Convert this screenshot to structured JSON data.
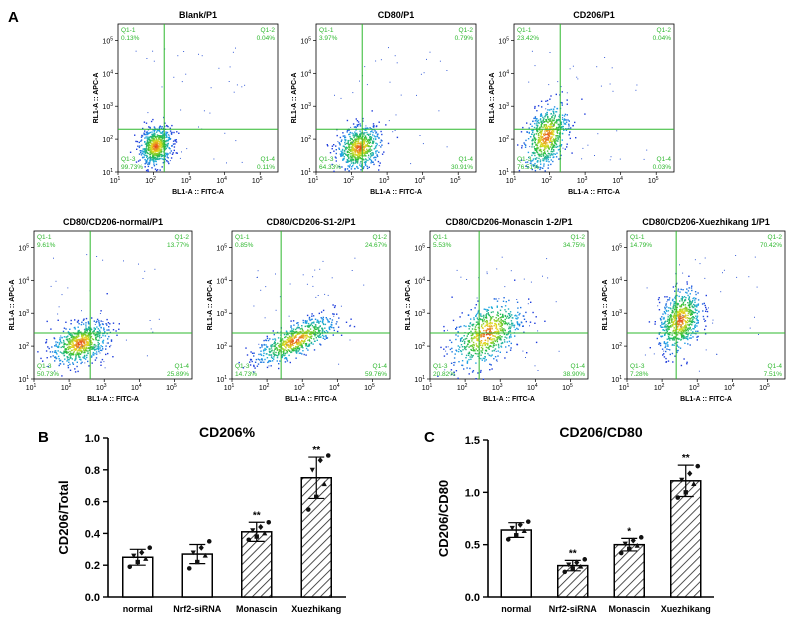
{
  "panel_letters": {
    "a": "A",
    "b": "B",
    "c": "C"
  },
  "colors": {
    "quadrant": "#2eb82e",
    "axis": "#000000",
    "point": "#333333"
  },
  "flow_axis": {
    "x_label": "BL1-A :: FITC-A",
    "y_label": "RL1-A :: APC-A",
    "ticks": [
      {
        "base": "10",
        "exp": "1"
      },
      {
        "base": "10",
        "exp": "2"
      },
      {
        "base": "10",
        "exp": "3"
      },
      {
        "base": "10",
        "exp": "4"
      },
      {
        "base": "10",
        "exp": "5"
      }
    ]
  },
  "chart_data": [
    {
      "type": "scatter",
      "title": "Blank/P1",
      "xlabel": "BL1-A :: FITC-A",
      "ylabel": "RL1-A :: APC-A",
      "x_range_log10": [
        1,
        5.5
      ],
      "y_range_log10": [
        1,
        5.5
      ],
      "gate_log10": {
        "x": 2.3,
        "y": 2.3
      },
      "population": {
        "center_log10": [
          2.05,
          1.8
        ],
        "spread_log10": [
          0.22,
          0.28
        ],
        "tilt": 0.2
      },
      "quadrants": {
        "Q1-1": {
          "name": "Q1-1",
          "value": "0.13%"
        },
        "Q1-2": {
          "name": "Q1-2",
          "value": "0.04%"
        },
        "Q1-3": {
          "name": "Q1-3",
          "value": "99.73%"
        },
        "Q1-4": {
          "name": "Q1-4",
          "value": "0.11%"
        }
      }
    },
    {
      "type": "scatter",
      "title": "CD80/P1",
      "xlabel": "BL1-A :: FITC-A",
      "ylabel": "RL1-A :: APC-A",
      "x_range_log10": [
        1,
        5.5
      ],
      "y_range_log10": [
        1,
        5.5
      ],
      "gate_log10": {
        "x": 2.3,
        "y": 2.3
      },
      "population": {
        "center_log10": [
          2.2,
          1.75
        ],
        "spread_log10": [
          0.3,
          0.32
        ],
        "tilt": 0.2
      },
      "quadrants": {
        "Q1-1": {
          "name": "Q1-1",
          "value": "3.97%"
        },
        "Q1-2": {
          "name": "Q1-2",
          "value": "0.79%"
        },
        "Q1-3": {
          "name": "Q1-3",
          "value": "64.33%"
        },
        "Q1-4": {
          "name": "Q1-4",
          "value": "30.91%"
        }
      }
    },
    {
      "type": "scatter",
      "title": "CD206/P1",
      "xlabel": "BL1-A :: FITC-A",
      "ylabel": "RL1-A :: APC-A",
      "x_range_log10": [
        1,
        5.5
      ],
      "y_range_log10": [
        1,
        5.5
      ],
      "gate_log10": {
        "x": 2.3,
        "y": 2.3
      },
      "population": {
        "center_log10": [
          1.9,
          2.1
        ],
        "spread_log10": [
          0.3,
          0.45
        ],
        "tilt": 0.6
      },
      "quadrants": {
        "Q1-1": {
          "name": "Q1-1",
          "value": "23.42%"
        },
        "Q1-2": {
          "name": "Q1-2",
          "value": "0.04%"
        },
        "Q1-3": {
          "name": "Q1-3",
          "value": "76.51%"
        },
        "Q1-4": {
          "name": "Q1-4",
          "value": "0.03%"
        }
      }
    },
    {
      "type": "scatter",
      "title": "CD80/CD206-normal/P1",
      "xlabel": "BL1-A :: FITC-A",
      "ylabel": "RL1-A :: APC-A",
      "x_range_log10": [
        1,
        5.5
      ],
      "y_range_log10": [
        1,
        5.5
      ],
      "gate_log10": {
        "x": 2.6,
        "y": 2.4
      },
      "population": {
        "center_log10": [
          2.3,
          2.1
        ],
        "spread_log10": [
          0.4,
          0.3
        ],
        "tilt": 0.3
      },
      "quadrants": {
        "Q1-1": {
          "name": "Q1-1",
          "value": "9.61%"
        },
        "Q1-2": {
          "name": "Q1-2",
          "value": "13.77%"
        },
        "Q1-3": {
          "name": "Q1-3",
          "value": "50.73%"
        },
        "Q1-4": {
          "name": "Q1-4",
          "value": "25.89%"
        }
      }
    },
    {
      "type": "scatter",
      "title": "CD80/CD206-S1-2/P1",
      "xlabel": "BL1-A :: FITC-A",
      "ylabel": "RL1-A :: APC-A",
      "x_range_log10": [
        1,
        5.5
      ],
      "y_range_log10": [
        1,
        5.5
      ],
      "gate_log10": {
        "x": 2.4,
        "y": 2.4
      },
      "population": {
        "center_log10": [
          2.8,
          2.2
        ],
        "spread_log10": [
          0.55,
          0.25
        ],
        "tilt": 0.45
      },
      "quadrants": {
        "Q1-1": {
          "name": "Q1-1",
          "value": "0.85%"
        },
        "Q1-2": {
          "name": "Q1-2",
          "value": "24.67%"
        },
        "Q1-3": {
          "name": "Q1-3",
          "value": "14.73%"
        },
        "Q1-4": {
          "name": "Q1-4",
          "value": "59.76%"
        }
      }
    },
    {
      "type": "scatter",
      "title": "CD80/CD206-Monascin 1-2/P1",
      "xlabel": "BL1-A :: FITC-A",
      "ylabel": "RL1-A :: APC-A",
      "x_range_log10": [
        1,
        5.5
      ],
      "y_range_log10": [
        1,
        5.5
      ],
      "gate_log10": {
        "x": 2.4,
        "y": 2.4
      },
      "population": {
        "center_log10": [
          2.6,
          2.4
        ],
        "spread_log10": [
          0.5,
          0.45
        ],
        "tilt": 0.5
      },
      "quadrants": {
        "Q1-1": {
          "name": "Q1-1",
          "value": "5.53%"
        },
        "Q1-2": {
          "name": "Q1-2",
          "value": "34.75%"
        },
        "Q1-3": {
          "name": "Q1-3",
          "value": "20.82%"
        },
        "Q1-4": {
          "name": "Q1-4",
          "value": "38.90%"
        }
      }
    },
    {
      "type": "scatter",
      "title": "CD80/CD206-Xuezhikang 1/P1",
      "xlabel": "BL1-A :: FITC-A",
      "ylabel": "RL1-A :: APC-A",
      "x_range_log10": [
        1,
        5.5
      ],
      "y_range_log10": [
        1,
        5.5
      ],
      "gate_log10": {
        "x": 2.4,
        "y": 2.4
      },
      "population": {
        "center_log10": [
          2.5,
          2.8
        ],
        "spread_log10": [
          0.3,
          0.45
        ],
        "tilt": 0.5
      },
      "quadrants": {
        "Q1-1": {
          "name": "Q1-1",
          "value": "14.79%"
        },
        "Q1-2": {
          "name": "Q1-2",
          "value": "70.42%"
        },
        "Q1-3": {
          "name": "Q1-3",
          "value": "7.28%"
        },
        "Q1-4": {
          "name": "Q1-4",
          "value": "7.51%"
        }
      }
    },
    {
      "type": "bar",
      "title": "CD206%",
      "ylabel": "CD206/Total",
      "ylim": [
        0,
        1.0
      ],
      "yticks": [
        {
          "label": "0.0",
          "value": 0.0
        },
        {
          "label": "0.2",
          "value": 0.2
        },
        {
          "label": "0.4",
          "value": 0.4
        },
        {
          "label": "0.6",
          "value": 0.6
        },
        {
          "label": "0.8",
          "value": 0.8
        },
        {
          "label": "1.0",
          "value": 1.0
        }
      ],
      "categories": [
        "normal",
        "Nrf2-siRNA",
        "Monascin",
        "Xuezhikang"
      ],
      "values": [
        0.25,
        0.27,
        0.41,
        0.75
      ],
      "errors": [
        0.05,
        0.06,
        0.06,
        0.13
      ],
      "fills": [
        "none",
        "none",
        "hatch",
        "hatch"
      ],
      "significance": [
        "",
        "",
        "**",
        "**"
      ],
      "points": [
        [
          0.19,
          0.22,
          0.24,
          0.26,
          0.28,
          0.31
        ],
        [
          0.18,
          0.22,
          0.26,
          0.28,
          0.31,
          0.35
        ],
        [
          0.36,
          0.38,
          0.4,
          0.42,
          0.44,
          0.47
        ],
        [
          0.55,
          0.63,
          0.71,
          0.8,
          0.86,
          0.89
        ]
      ]
    },
    {
      "type": "bar",
      "title": "CD206/CD80",
      "ylabel": "CD206/CD80",
      "ylim": [
        0,
        1.5
      ],
      "yticks": [
        {
          "label": "0.0",
          "value": 0.0
        },
        {
          "label": "0.5",
          "value": 0.5
        },
        {
          "label": "1.0",
          "value": 1.0
        },
        {
          "label": "1.5",
          "value": 1.5
        }
      ],
      "categories": [
        "normal",
        "Nrf2-siRNA",
        "Monascin",
        "Xuezhikang"
      ],
      "values": [
        0.64,
        0.3,
        0.5,
        1.11
      ],
      "errors": [
        0.07,
        0.05,
        0.06,
        0.15
      ],
      "fills": [
        "none",
        "hatch",
        "hatch",
        "hatch"
      ],
      "significance": [
        "",
        "**",
        "*",
        "**"
      ],
      "points": [
        [
          0.55,
          0.59,
          0.63,
          0.66,
          0.69,
          0.72
        ],
        [
          0.24,
          0.27,
          0.29,
          0.31,
          0.33,
          0.36
        ],
        [
          0.42,
          0.46,
          0.49,
          0.51,
          0.54,
          0.57
        ],
        [
          0.95,
          1.0,
          1.08,
          1.12,
          1.18,
          1.25
        ]
      ]
    }
  ]
}
